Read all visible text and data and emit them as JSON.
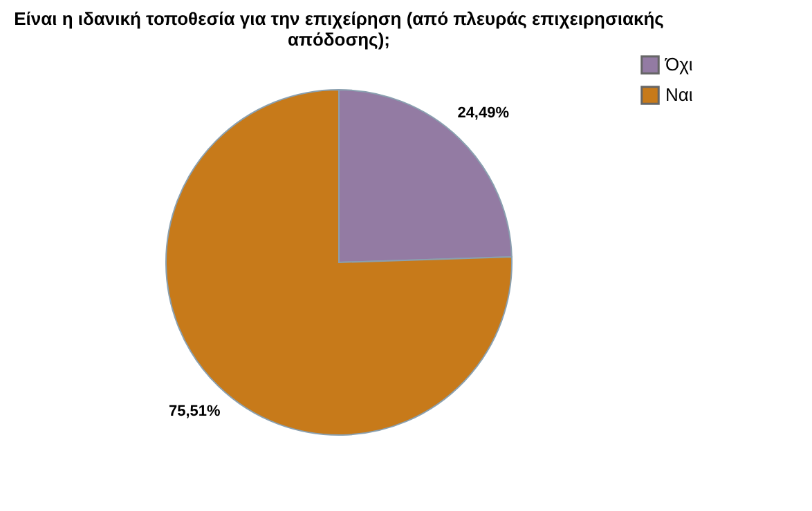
{
  "chart_data": {
    "type": "pie",
    "title": "Είναι η ιδανική τοποθεσία για την επιχείρηση (από πλευράς επιχειρησιακής απόδοσης);",
    "categories": [
      "Όχι",
      "Ναι"
    ],
    "values": [
      24.49,
      75.51
    ],
    "colors": [
      "#937ba3",
      "#c77a1a"
    ],
    "value_labels": [
      "24,49%",
      "75,51%"
    ],
    "legend": "right"
  }
}
